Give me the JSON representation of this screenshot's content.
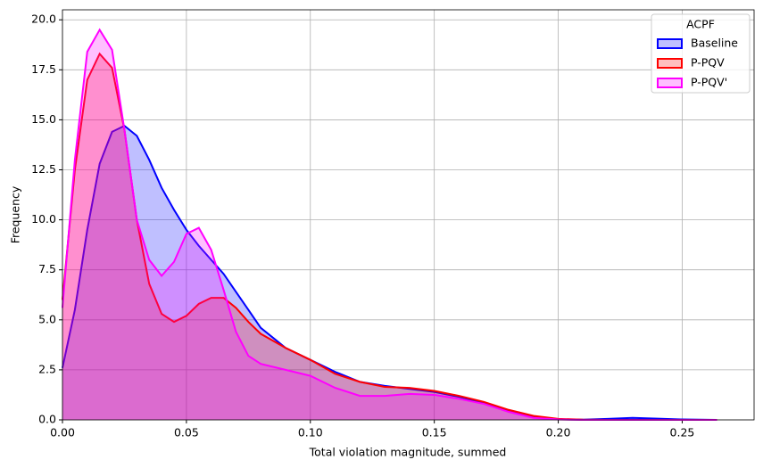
{
  "chart_data": {
    "type": "area",
    "xlabel": "Total violation magnitude, summed",
    "ylabel": "Frequency",
    "legend_title": "ACPF",
    "legend_position": "upper right",
    "grid": true,
    "xlim": [
      0,
      0.279
    ],
    "ylim": [
      0,
      20.5
    ],
    "xticks": [
      {
        "value": 0,
        "label": "0.00"
      },
      {
        "value": 0.05,
        "label": "0.05"
      },
      {
        "value": 0.1,
        "label": "0.10"
      },
      {
        "value": 0.15,
        "label": "0.15"
      },
      {
        "value": 0.2,
        "label": "0.20"
      },
      {
        "value": 0.25,
        "label": "0.25"
      }
    ],
    "yticks": [
      {
        "value": 0,
        "label": "0.0"
      },
      2.5,
      {
        "value": 5,
        "label": "5.0"
      },
      7.5,
      {
        "value": 10,
        "label": "10.0"
      },
      12.5,
      {
        "value": 15,
        "label": "15.0"
      },
      17.5,
      {
        "value": 20,
        "label": "20.0"
      }
    ],
    "x": [
      0,
      0.005,
      0.01,
      0.015,
      0.02,
      0.025,
      0.03,
      0.035,
      0.04,
      0.045,
      0.05,
      0.055,
      0.06,
      0.065,
      0.07,
      0.075,
      0.08,
      0.09,
      0.1,
      0.11,
      0.12,
      0.13,
      0.14,
      0.15,
      0.16,
      0.17,
      0.18,
      0.19,
      0.2,
      0.21,
      0.22,
      0.23,
      0.24,
      0.25,
      0.264
    ],
    "series": [
      {
        "name": "Baseline",
        "color": "#0000ff",
        "values": [
          2.6,
          5.5,
          9.5,
          12.8,
          14.4,
          14.7,
          14.2,
          13.0,
          11.6,
          10.5,
          9.5,
          8.7,
          8.0,
          7.3,
          6.4,
          5.5,
          4.6,
          3.6,
          3.0,
          2.4,
          1.9,
          1.7,
          1.55,
          1.4,
          1.15,
          0.85,
          0.45,
          0.15,
          0.03,
          0.01,
          0.05,
          0.1,
          0.06,
          0.02,
          0
        ]
      },
      {
        "name": "P-PQV",
        "color": "#ff0000",
        "values": [
          6.0,
          12.5,
          17.0,
          18.3,
          17.6,
          14.5,
          10.0,
          6.8,
          5.3,
          4.9,
          5.2,
          5.8,
          6.1,
          6.1,
          5.6,
          4.9,
          4.3,
          3.6,
          3.0,
          2.3,
          1.9,
          1.65,
          1.6,
          1.45,
          1.2,
          0.9,
          0.5,
          0.2,
          0.05,
          0.01,
          0,
          0,
          0,
          0,
          0
        ]
      },
      {
        "name": "P-PQV'",
        "color": "#ff00ff",
        "values": [
          5.6,
          13.0,
          18.4,
          19.5,
          18.5,
          14.5,
          10.0,
          8.0,
          7.2,
          7.9,
          9.3,
          9.6,
          8.5,
          6.5,
          4.4,
          3.2,
          2.8,
          2.5,
          2.2,
          1.6,
          1.2,
          1.2,
          1.3,
          1.25,
          1.05,
          0.8,
          0.4,
          0.1,
          0.02,
          0,
          0,
          0,
          0,
          0,
          0
        ]
      }
    ]
  }
}
